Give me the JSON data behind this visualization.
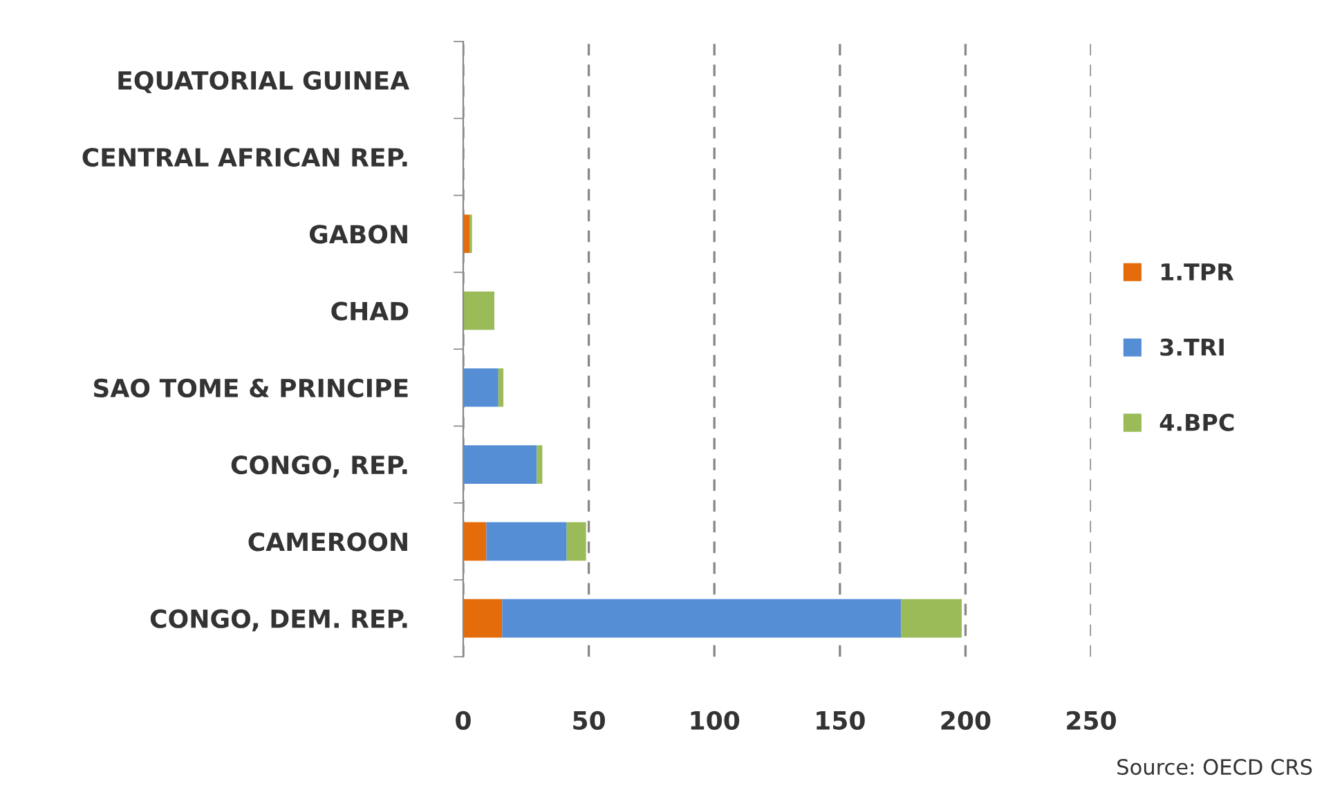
{
  "chart_data": {
    "type": "bar",
    "orientation": "horizontal",
    "stacked": true,
    "categories": [
      "EQUATORIAL GUINEA",
      "CENTRAL AFRICAN REP.",
      "GABON",
      "CHAD",
      "SAO TOME & PRINCIPE",
      "CONGO, REP.",
      "CAMEROON",
      "CONGO, DEM. REP."
    ],
    "series": [
      {
        "name": "1.TPR",
        "color": "#e46c0a",
        "values": [
          0,
          0,
          2.5,
          0,
          0,
          0,
          9.2,
          15.5
        ]
      },
      {
        "name": "3.TRI",
        "color": "#558ed5",
        "values": [
          0,
          0,
          0,
          0,
          14,
          29.3,
          32,
          158.8
        ]
      },
      {
        "name": "4.BPC",
        "color": "#9bbb59",
        "values": [
          0,
          0,
          1,
          12.4,
          2,
          2.2,
          7.7,
          24.2
        ]
      }
    ],
    "xlim": [
      0,
      250
    ],
    "xticks": [
      0,
      50,
      100,
      150,
      200,
      250
    ],
    "grid": "x",
    "legend": "right",
    "annotations": [
      "Source: OECD CRS"
    ]
  }
}
